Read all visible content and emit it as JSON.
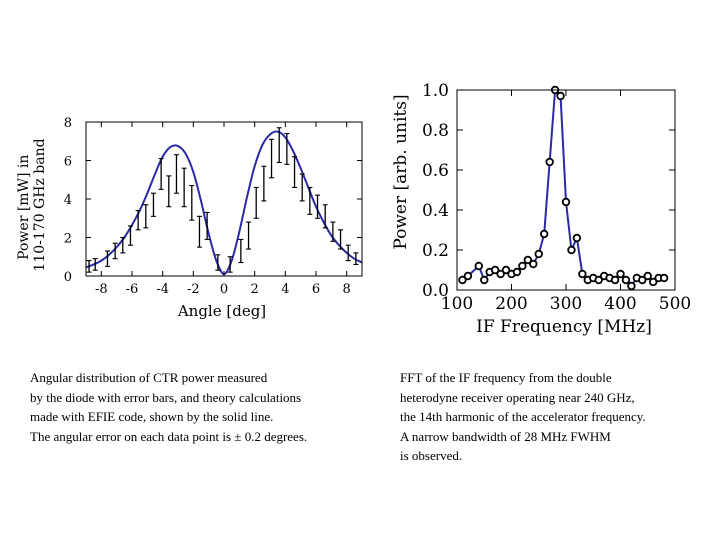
{
  "chart_data": [
    {
      "type": "line",
      "ylabel_lines": [
        "Power  [mW] in",
        "110-170 GHz band"
      ],
      "xlabel": "Angle [deg]",
      "xlim": [
        -9,
        9
      ],
      "ylim": [
        0,
        8
      ],
      "xticks": [
        -8,
        -6,
        -4,
        -2,
        0,
        2,
        4,
        6,
        8
      ],
      "yticks": [
        0,
        2,
        4,
        6,
        8
      ],
      "series": [
        {
          "name": "theory (EFIE code)",
          "style": "line",
          "x": [
            -9,
            -8.5,
            -8,
            -7.5,
            -7,
            -6.5,
            -6,
            -5.5,
            -5,
            -4.5,
            -4,
            -3.5,
            -3,
            -2.5,
            -2,
            -1.5,
            -1,
            -0.5,
            0,
            0.5,
            1,
            1.5,
            2,
            2.5,
            3,
            3.5,
            4,
            4.5,
            5,
            5.5,
            6,
            6.5,
            7,
            7.5,
            8,
            8.5,
            9
          ],
          "y": [
            0.45,
            0.6,
            0.8,
            1.1,
            1.5,
            2.0,
            2.65,
            3.4,
            4.3,
            5.3,
            6.2,
            6.7,
            6.75,
            6.35,
            5.4,
            3.9,
            2.2,
            0.8,
            0.1,
            0.8,
            2.3,
            4.1,
            5.7,
            6.8,
            7.35,
            7.5,
            7.2,
            6.5,
            5.6,
            4.6,
            3.6,
            2.8,
            2.1,
            1.6,
            1.2,
            0.9,
            0.7
          ]
        },
        {
          "name": "diode measurements",
          "style": "errorbar",
          "x": [
            -8.8,
            -8.4,
            -7.6,
            -7.1,
            -6.6,
            -6.1,
            -5.6,
            -5.1,
            -4.6,
            -4.1,
            -3.6,
            -3.1,
            -2.6,
            -2.1,
            -1.6,
            -1.1,
            -0.4,
            0.4,
            1.1,
            1.6,
            2.1,
            2.6,
            3.1,
            3.6,
            4.1,
            4.6,
            5.1,
            5.6,
            6.1,
            6.6,
            7.1,
            7.6,
            8.1,
            8.6
          ],
          "y": [
            0.5,
            0.6,
            0.9,
            1.3,
            1.6,
            2.1,
            2.9,
            3.1,
            3.7,
            5.3,
            4.4,
            5.3,
            4.6,
            3.8,
            2.3,
            2.6,
            0.7,
            0.6,
            1.3,
            2.1,
            3.8,
            4.8,
            6.1,
            6.8,
            6.6,
            5.4,
            4.6,
            3.9,
            3.6,
            3.1,
            2.3,
            1.9,
            1.2,
            0.9
          ],
          "err": [
            0.3,
            0.3,
            0.4,
            0.4,
            0.4,
            0.5,
            0.5,
            0.6,
            0.6,
            0.8,
            0.8,
            1.0,
            1.0,
            0.9,
            0.8,
            0.7,
            0.4,
            0.4,
            0.6,
            0.7,
            0.8,
            0.9,
            1.0,
            0.9,
            0.8,
            0.8,
            0.7,
            0.7,
            0.6,
            0.6,
            0.5,
            0.5,
            0.4,
            0.3
          ]
        }
      ]
    },
    {
      "type": "line",
      "ylabel": "Power [arb. units]",
      "xlabel": "IF Frequency [MHz]",
      "xlim": [
        100,
        500
      ],
      "ylim": [
        0,
        1.0
      ],
      "xticks": [
        100,
        200,
        300,
        400,
        500
      ],
      "yticks": [
        0.0,
        0.2,
        0.4,
        0.6,
        0.8,
        1.0
      ],
      "ytick_labels": [
        "0.0",
        "0.2",
        "0.4",
        "0.6",
        "0.8",
        "1.0"
      ],
      "series": [
        {
          "name": "FFT of IF frequency",
          "style": "line+markers",
          "x": [
            110,
            120,
            140,
            150,
            160,
            170,
            180,
            190,
            200,
            210,
            220,
            230,
            240,
            250,
            260,
            270,
            280,
            290,
            300,
            310,
            320,
            330,
            340,
            350,
            360,
            370,
            380,
            390,
            400,
            410,
            420,
            430,
            440,
            450,
            460,
            470,
            480
          ],
          "y": [
            0.05,
            0.07,
            0.12,
            0.05,
            0.09,
            0.1,
            0.08,
            0.1,
            0.08,
            0.09,
            0.12,
            0.15,
            0.13,
            0.18,
            0.28,
            0.64,
            1.0,
            0.97,
            0.44,
            0.2,
            0.26,
            0.08,
            0.05,
            0.06,
            0.05,
            0.07,
            0.06,
            0.05,
            0.08,
            0.05,
            0.02,
            0.06,
            0.05,
            0.07,
            0.04,
            0.06,
            0.06
          ]
        }
      ]
    }
  ],
  "captions": {
    "left": [
      "Angular distribution  of  CTR  power  measured",
      "by the diode with error bars, and theory calculations",
      "made  with  EFIE code,   shown by the solid line.",
      "The angular error on each data point is ± 0.2 degrees."
    ],
    "right": [
      "FFT  of   the  IF   frequency   from the double",
      "heterodyne  receiver operating near 240 GHz,",
      "the 14th harmonic of the accelerator frequency.",
      "A  narrow  bandwidth  of   28  MHz FWHM",
      "is observed."
    ]
  },
  "colors": {
    "theory_line": "#2a2aa8",
    "fft_line": "#2a2aa8",
    "axis": "#000000",
    "marker_fill": "#ffffff"
  }
}
